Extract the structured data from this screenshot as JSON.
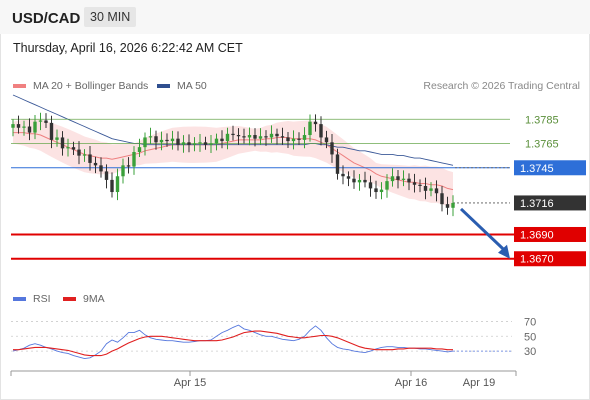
{
  "header": {
    "pair": "USD/CAD",
    "timeframe": "30 MIN"
  },
  "datetime": "Thursday, April 16, 2026 6:22:42 AM CET",
  "legend": [
    {
      "label": "MA 20 + Bollinger Bands",
      "color": "#f08080"
    },
    {
      "label": "MA 50",
      "color": "#2f4f8f"
    }
  ],
  "credit": "Research © 2026 Trading Central",
  "rsi_legend": [
    {
      "label": "RSI",
      "color": "#5577dd"
    },
    {
      "label": "9MA",
      "color": "#e02020"
    }
  ],
  "chart_data": [
    {
      "type": "candlestick",
      "title": "USD/CAD 30 MIN",
      "x_ticks": [
        "Apr 15",
        "Apr 16",
        "Apr 19"
      ],
      "price_range": [
        1.365,
        1.3805
      ],
      "levels": [
        {
          "value": "1.3785",
          "kind": "resistance",
          "color": "#6aa84f"
        },
        {
          "value": "1.3765",
          "kind": "resistance",
          "color": "#6aa84f"
        },
        {
          "value": "1.3745",
          "kind": "pivot",
          "color": "#2e6fd8"
        },
        {
          "value": "1.3716",
          "kind": "last",
          "color": "#333333"
        },
        {
          "value": "1.3690",
          "kind": "support",
          "color": "#e00000"
        },
        {
          "value": "1.3670",
          "kind": "support",
          "color": "#e00000"
        }
      ],
      "close": [
        1.3781,
        1.3778,
        1.3779,
        1.3774,
        1.3783,
        1.3784,
        1.3782,
        1.3768,
        1.377,
        1.3761,
        1.3762,
        1.376,
        1.3755,
        1.3756,
        1.3749,
        1.3747,
        1.3742,
        1.3735,
        1.3725,
        1.3738,
        1.3747,
        1.3746,
        1.3758,
        1.3762,
        1.377,
        1.3771,
        1.3766,
        1.3768,
        1.3767,
        1.3769,
        1.3764,
        1.3766,
        1.3764,
        1.3765,
        1.3766,
        1.3764,
        1.3765,
        1.3769,
        1.3767,
        1.3773,
        1.3772,
        1.3771,
        1.377,
        1.3772,
        1.3769,
        1.3771,
        1.377,
        1.3773,
        1.3771,
        1.377,
        1.3767,
        1.3769,
        1.3768,
        1.3772,
        1.3783,
        1.3781,
        1.377,
        1.3766,
        1.3756,
        1.374,
        1.3738,
        1.3736,
        1.3733,
        1.3735,
        1.3733,
        1.3728,
        1.3725,
        1.3727,
        1.3734,
        1.3738,
        1.3735,
        1.3736,
        1.3733,
        1.3731,
        1.373,
        1.3726,
        1.3728,
        1.3724,
        1.3715,
        1.3712,
        1.3716
      ],
      "ma20": [
        1.3774,
        1.3774,
        1.3774,
        1.3773,
        1.3773,
        1.3772,
        1.377,
        1.3768,
        1.3766,
        1.3764,
        1.3762,
        1.376,
        1.3758,
        1.3756,
        1.3755,
        1.3754,
        1.3753,
        1.3753,
        1.3752,
        1.3753,
        1.3754,
        1.3755,
        1.3756,
        1.3757,
        1.3759,
        1.376,
        1.3761,
        1.3762,
        1.3763,
        1.3764,
        1.3764,
        1.3764,
        1.3764,
        1.3764,
        1.3764,
        1.3764,
        1.3764,
        1.3764,
        1.3765,
        1.3766,
        1.3767,
        1.3768,
        1.3768,
        1.3768,
        1.3768,
        1.3768,
        1.3769,
        1.3769,
        1.377,
        1.377,
        1.377,
        1.3769,
        1.3769,
        1.3769,
        1.3769,
        1.3768,
        1.3766,
        1.3764,
        1.3761,
        1.3758,
        1.3755,
        1.3752,
        1.3749,
        1.3747,
        1.3745,
        1.3743,
        1.374,
        1.3738,
        1.3737,
        1.3736,
        1.3735,
        1.3734,
        1.3733,
        1.3733,
        1.3732,
        1.3732,
        1.3731,
        1.3731,
        1.373,
        1.3728,
        1.3727
      ],
      "ma50": [
        1.3805,
        1.3803,
        1.3801,
        1.3799,
        1.3797,
        1.3795,
        1.3793,
        1.3791,
        1.3789,
        1.3787,
        1.3785,
        1.3783,
        1.3781,
        1.3779,
        1.3777,
        1.3775,
        1.3773,
        1.3771,
        1.3769,
        1.3768,
        1.3767,
        1.3766,
        1.3765,
        1.3765,
        1.3764,
        1.3764,
        1.3764,
        1.3764,
        1.3764,
        1.3764,
        1.3764,
        1.3764,
        1.3764,
        1.3764,
        1.3764,
        1.3764,
        1.3764,
        1.3764,
        1.3764,
        1.3764,
        1.3764,
        1.3764,
        1.3764,
        1.3764,
        1.3764,
        1.3764,
        1.3764,
        1.3764,
        1.3764,
        1.3764,
        1.3764,
        1.3764,
        1.3764,
        1.3764,
        1.3765,
        1.3765,
        1.3764,
        1.3764,
        1.3763,
        1.3762,
        1.3762,
        1.3761,
        1.376,
        1.3759,
        1.3759,
        1.3758,
        1.3757,
        1.3756,
        1.3756,
        1.3756,
        1.3755,
        1.3755,
        1.3754,
        1.3753,
        1.3753,
        1.3752,
        1.3751,
        1.375,
        1.3749,
        1.3748,
        1.3747
      ],
      "projection": {
        "from": 1.3716,
        "to": 1.367
      }
    },
    {
      "type": "line",
      "title": "RSI",
      "y_ticks": [
        "70",
        "50",
        "30"
      ],
      "ylim": [
        10,
        80
      ],
      "series": [
        {
          "name": "RSI",
          "color": "#5577dd",
          "values": [
            30,
            32,
            34,
            38,
            40,
            38,
            35,
            33,
            30,
            28,
            27,
            24,
            22,
            20,
            21,
            25,
            30,
            40,
            45,
            42,
            48,
            55,
            55,
            58,
            52,
            48,
            46,
            45,
            44,
            44,
            43,
            42,
            42,
            43,
            44,
            44,
            45,
            50,
            55,
            58,
            62,
            65,
            60,
            58,
            55,
            52,
            50,
            50,
            48,
            46,
            45,
            44,
            46,
            50,
            58,
            64,
            58,
            48,
            40,
            35,
            33,
            32,
            30,
            29,
            28,
            30,
            33,
            35,
            36,
            36,
            35,
            35,
            34,
            34,
            33,
            33,
            32,
            31,
            30,
            29,
            30
          ]
        },
        {
          "name": "9MA",
          "color": "#e02020",
          "values": [
            32,
            32,
            33,
            34,
            35,
            35,
            35,
            34,
            33,
            32,
            31,
            29,
            27,
            25,
            24,
            24,
            24,
            26,
            30,
            33,
            37,
            41,
            44,
            47,
            49,
            50,
            50,
            50,
            49,
            48,
            47,
            46,
            45,
            44,
            44,
            44,
            44,
            44,
            45,
            47,
            49,
            52,
            55,
            56,
            57,
            57,
            56,
            55,
            54,
            52,
            50,
            49,
            48,
            48,
            49,
            50,
            51,
            51,
            50,
            48,
            45,
            42,
            39,
            36,
            34,
            33,
            32,
            32,
            32,
            32,
            33,
            33,
            34,
            34,
            34,
            34,
            34,
            33,
            33,
            32,
            32
          ]
        }
      ]
    }
  ]
}
